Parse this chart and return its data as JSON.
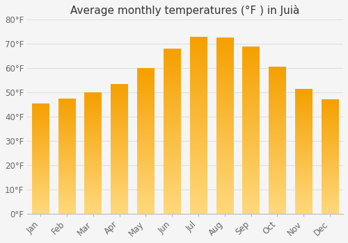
{
  "title": "Average monthly temperatures (°F ) in Juià",
  "months": [
    "Jan",
    "Feb",
    "Mar",
    "Apr",
    "May",
    "Jun",
    "Jul",
    "Aug",
    "Sep",
    "Oct",
    "Nov",
    "Dec"
  ],
  "values": [
    45.5,
    47.5,
    50.0,
    53.5,
    60.0,
    68.0,
    73.0,
    72.5,
    69.0,
    60.5,
    51.5,
    47.0
  ],
  "bar_color": "#F5A623",
  "ylim": [
    0,
    80
  ],
  "yticks": [
    0,
    10,
    20,
    30,
    40,
    50,
    60,
    70,
    80
  ],
  "ytick_labels": [
    "0°F",
    "10°F",
    "20°F",
    "30°F",
    "40°F",
    "50°F",
    "60°F",
    "70°F",
    "80°F"
  ],
  "background_color": "#F5F5F5",
  "grid_color": "#E0E0E0",
  "title_fontsize": 11,
  "tick_fontsize": 8.5,
  "bar_width": 0.65,
  "figsize": [
    5.0,
    3.5
  ],
  "dpi": 100
}
